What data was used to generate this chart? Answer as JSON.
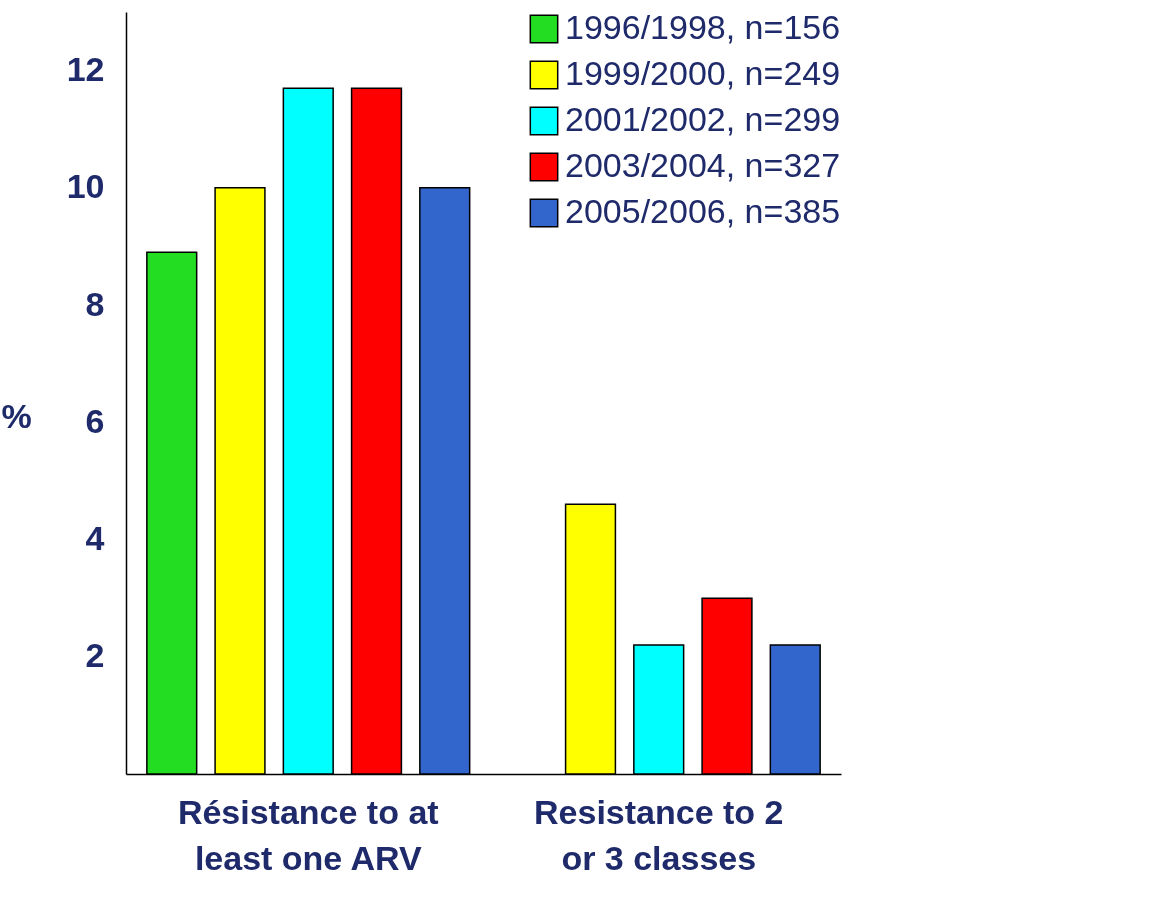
{
  "chart_data": {
    "type": "bar",
    "ylabel": "%",
    "categories": [
      "Résistance to at least one ARV",
      "Resistance to 2 or 3 classes"
    ],
    "series": [
      {
        "name": "1996/1998, n=156",
        "color": "#22dd22",
        "values": [
          8.9,
          null
        ]
      },
      {
        "name": "1999/2000, n=249",
        "color": "#ffff00",
        "values": [
          10.0,
          4.6
        ]
      },
      {
        "name": "2001/2002, n=299",
        "color": "#00ffff",
        "values": [
          11.7,
          2.2
        ]
      },
      {
        "name": "2003/2004, n=327",
        "color": "#ff0000",
        "values": [
          11.7,
          3.0
        ]
      },
      {
        "name": "2005/2006, n=385",
        "color": "#3366cc",
        "values": [
          10.0,
          2.2
        ]
      }
    ],
    "ylim": [
      0,
      13
    ],
    "yticks": [
      2,
      4,
      6,
      8,
      10,
      12
    ],
    "grid": false,
    "legend": "top right"
  }
}
